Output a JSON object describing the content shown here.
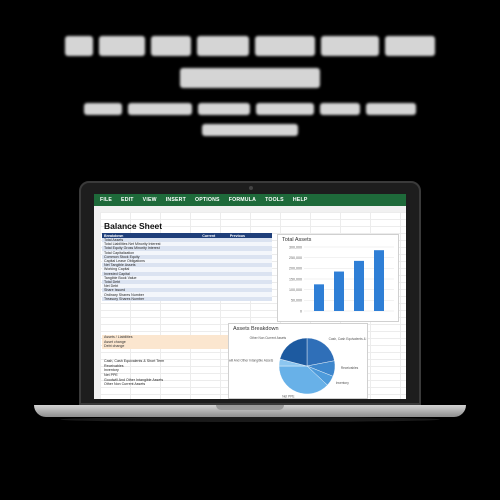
{
  "spreadsheet": {
    "menu": [
      "FILE",
      "EDIT",
      "VIEW",
      "INSERT",
      "OPTIONS",
      "FORMULA",
      "TOOLS",
      "HELP"
    ],
    "title": "Balance Sheet",
    "columns": [
      "Breakdown",
      "Current",
      "Previous",
      "",
      ""
    ],
    "rows": [
      [
        "Total Assets",
        "",
        "",
        "",
        ""
      ],
      [
        "Total Liabilities Net Minority Interest",
        "",
        "",
        "",
        ""
      ],
      [
        "Total Equity Gross Minority Interest",
        "",
        "",
        "",
        ""
      ],
      [
        "Total Capitalization",
        "",
        "",
        "",
        ""
      ],
      [
        "Common Stock Equity",
        "",
        "",
        "",
        ""
      ],
      [
        "Capital Lease Obligations",
        "",
        "",
        "",
        ""
      ],
      [
        "Net Tangible Assets",
        "",
        "",
        "",
        ""
      ],
      [
        "Working Capital",
        "",
        "",
        "",
        ""
      ],
      [
        "Invested Capital",
        "",
        "",
        "",
        ""
      ],
      [
        "Tangible Book Value",
        "",
        "",
        "",
        ""
      ],
      [
        "Total Debt",
        "",
        "",
        "",
        ""
      ],
      [
        "Net Debt",
        "",
        "",
        "",
        ""
      ],
      [
        "Share Issued",
        "",
        "",
        "",
        ""
      ],
      [
        "Ordinary Shares Number",
        "",
        "",
        "",
        ""
      ],
      [
        "Treasury Shares Number",
        "",
        "",
        "",
        ""
      ]
    ],
    "ratios": [
      [
        "Assets / Liabilities",
        "",
        ""
      ],
      [
        "Asset change",
        "",
        ""
      ],
      [
        "Debt change",
        "",
        ""
      ]
    ],
    "extra_rows": [
      [
        "Cash, Cash Equivalents & Short Term",
        ""
      ],
      [
        "Receivables",
        ""
      ],
      [
        "Inventory",
        ""
      ],
      [
        "Net PPE",
        ""
      ],
      [
        "Goodwill And Other Intangible Assets",
        ""
      ],
      [
        "Other Non Current Assets",
        ""
      ]
    ]
  },
  "chart_data": [
    {
      "type": "bar",
      "title": "Total Assets",
      "categories": [
        "",
        "",
        "",
        ""
      ],
      "values": [
        125000,
        185000,
        235000,
        285000
      ],
      "ylim": [
        0,
        300000
      ],
      "yticks": [
        "0",
        "50,000",
        "100,000",
        "150,000",
        "200,000",
        "250,000",
        "300,000"
      ],
      "color": "#2f7fd6"
    },
    {
      "type": "pie",
      "title": "Assets Breakdown",
      "labels": [
        "Cash, Cash Equivalents & Short Term",
        "Receivables",
        "Inventory",
        "Net PPE",
        "Goodwill And Other Intangible Assets",
        "Other Non Current Assets"
      ],
      "values": [
        22,
        9,
        6,
        38,
        4,
        21
      ],
      "colors": [
        "#2f6fb8",
        "#3d86cc",
        "#4e9bdb",
        "#68b1e8",
        "#8cc6f0",
        "#1d5aa0"
      ]
    }
  ]
}
